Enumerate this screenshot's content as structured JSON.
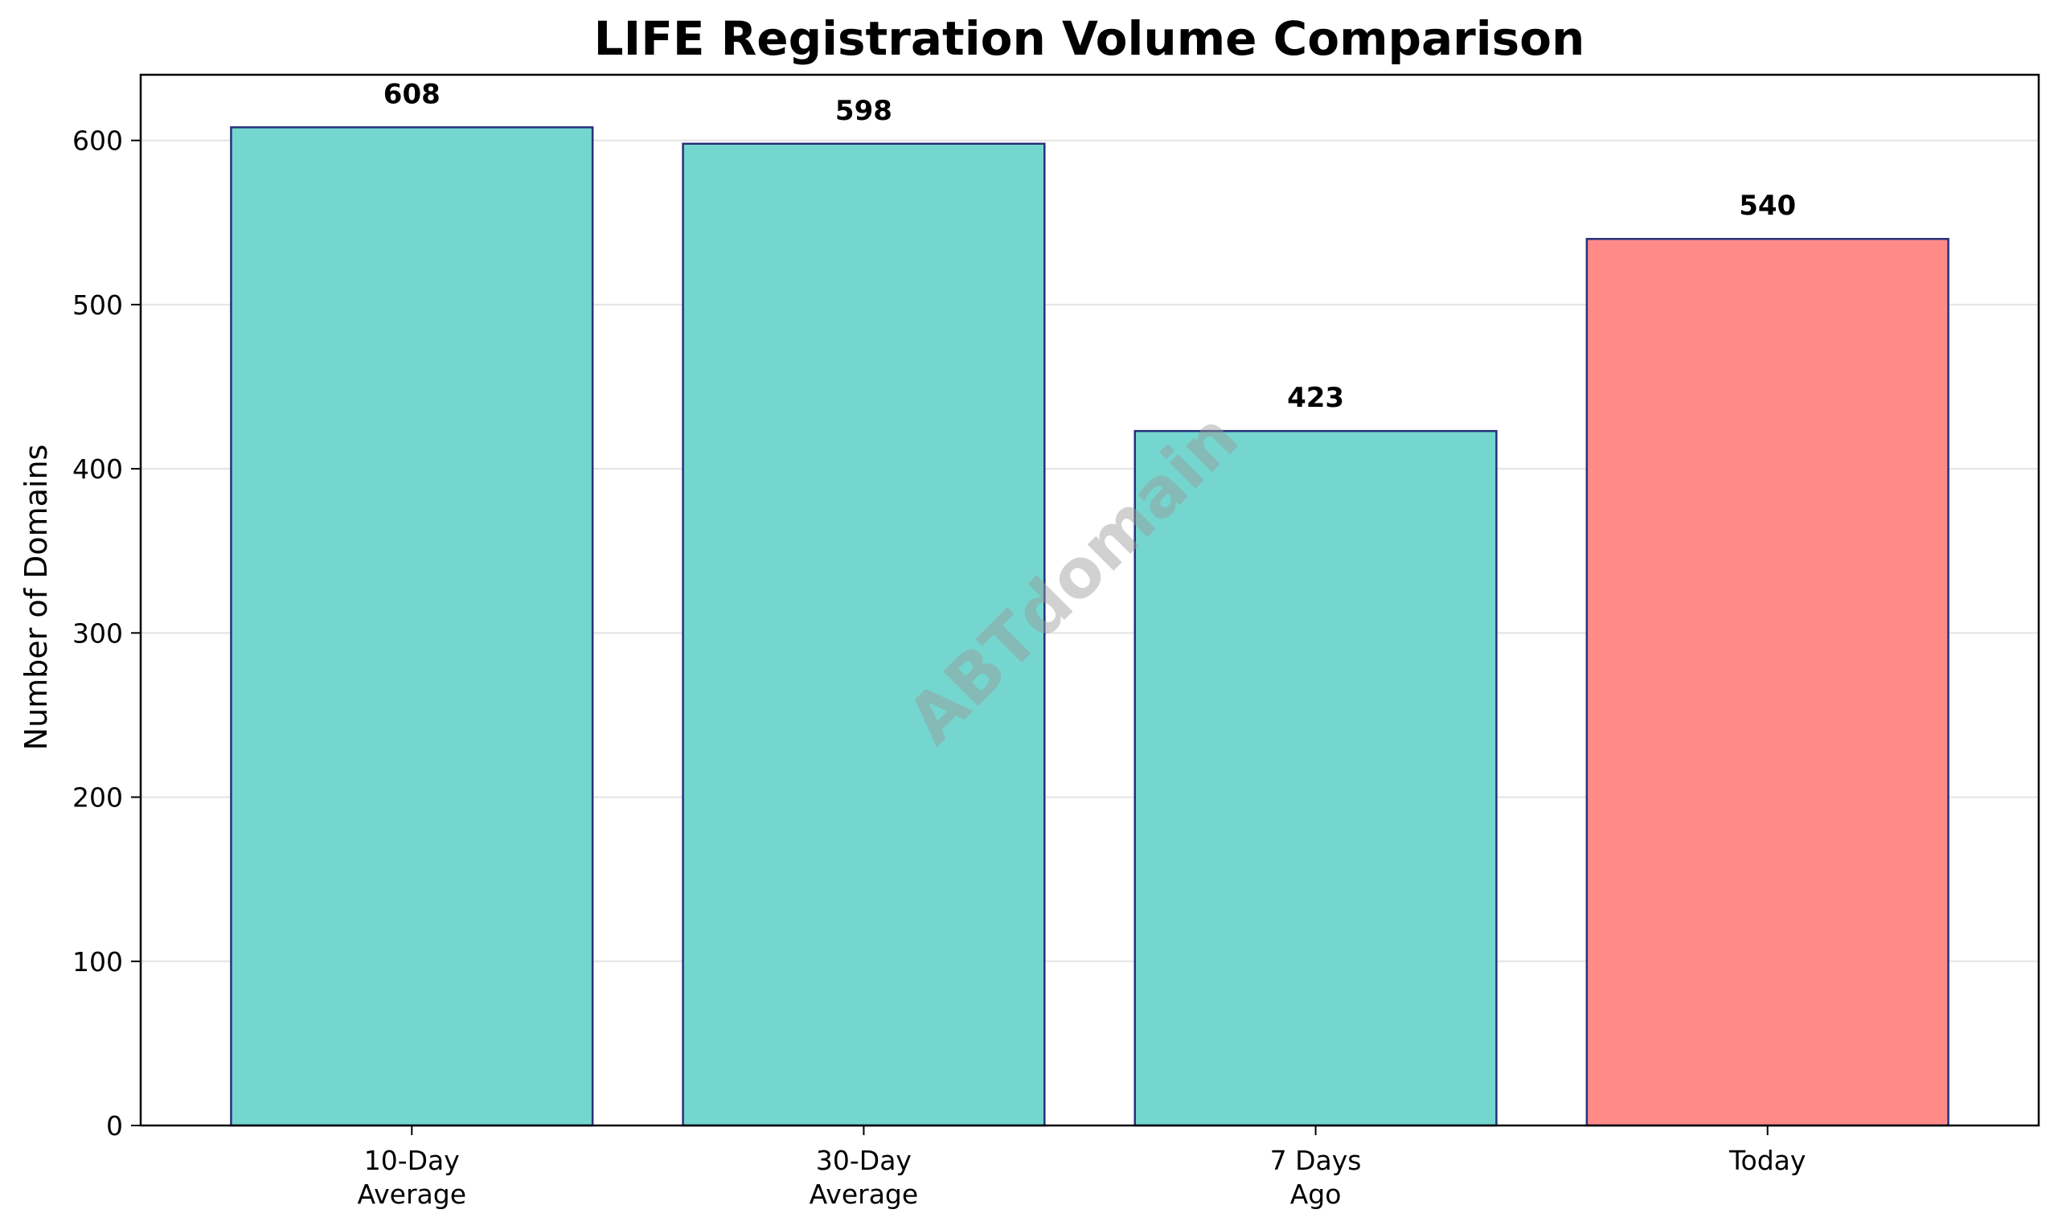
{
  "chart_data": {
    "type": "bar",
    "title": "LIFE Registration Volume Comparison",
    "xlabel": "",
    "ylabel": "Number of Domains",
    "categories": [
      [
        "10-Day",
        "Average"
      ],
      [
        "30-Day",
        "Average"
      ],
      [
        "7 Days",
        "Ago"
      ],
      [
        "Today"
      ]
    ],
    "values": [
      608,
      598,
      423,
      540
    ],
    "value_labels": [
      "608",
      "598",
      "423",
      "540"
    ],
    "bar_colors": [
      "#74d6cf",
      "#74d6cf",
      "#74d6cf",
      "#ff8a87"
    ],
    "bar_edge_color": "#26317a",
    "ylim": [
      0,
      640
    ],
    "yticks": [
      0,
      100,
      200,
      300,
      400,
      500,
      600
    ],
    "grid": "y",
    "legend": "none",
    "watermark": "ABTdomain"
  }
}
